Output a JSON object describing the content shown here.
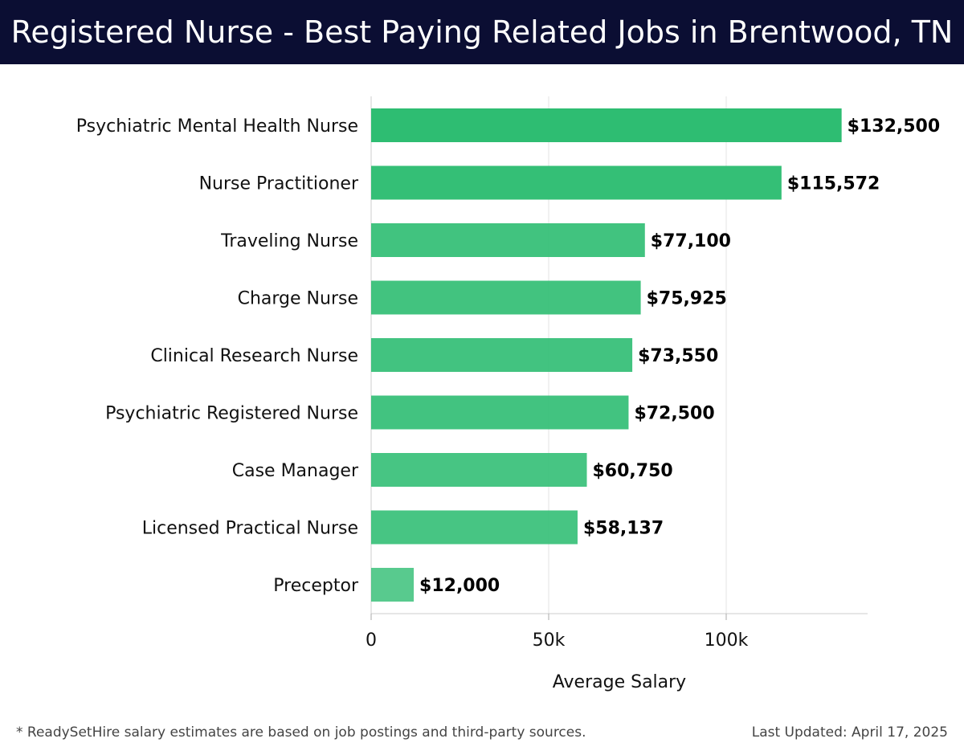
{
  "header": {
    "title": "Registered Nurse - Best Paying Related Jobs in Brentwood, TN"
  },
  "chart_data": {
    "type": "bar",
    "orientation": "horizontal",
    "categories": [
      "Psychiatric Mental Health Nurse",
      "Nurse Practitioner",
      "Traveling Nurse",
      "Charge Nurse",
      "Clinical Research Nurse",
      "Psychiatric Registered Nurse",
      "Case Manager",
      "Licensed Practical Nurse",
      "Preceptor"
    ],
    "values": [
      132500,
      115572,
      77100,
      75925,
      73550,
      72500,
      60750,
      58137,
      12000
    ],
    "value_labels": [
      "$132,500",
      "$115,572",
      "$77,100",
      "$75,925",
      "$73,550",
      "$72,500",
      "$60,750",
      "$58,137",
      "$12,000"
    ],
    "xlabel": "Average Salary",
    "xlim": [
      0,
      140000
    ],
    "x_ticks": [
      0,
      50000,
      100000
    ],
    "x_tick_labels": [
      "0",
      "50k",
      "100k"
    ],
    "grid": "vertical",
    "bar_color": "#2ebd72"
  },
  "footer": {
    "note": "* ReadySetHire salary estimates are based on job postings and third-party sources.",
    "updated": "Last Updated: April 17, 2025"
  }
}
